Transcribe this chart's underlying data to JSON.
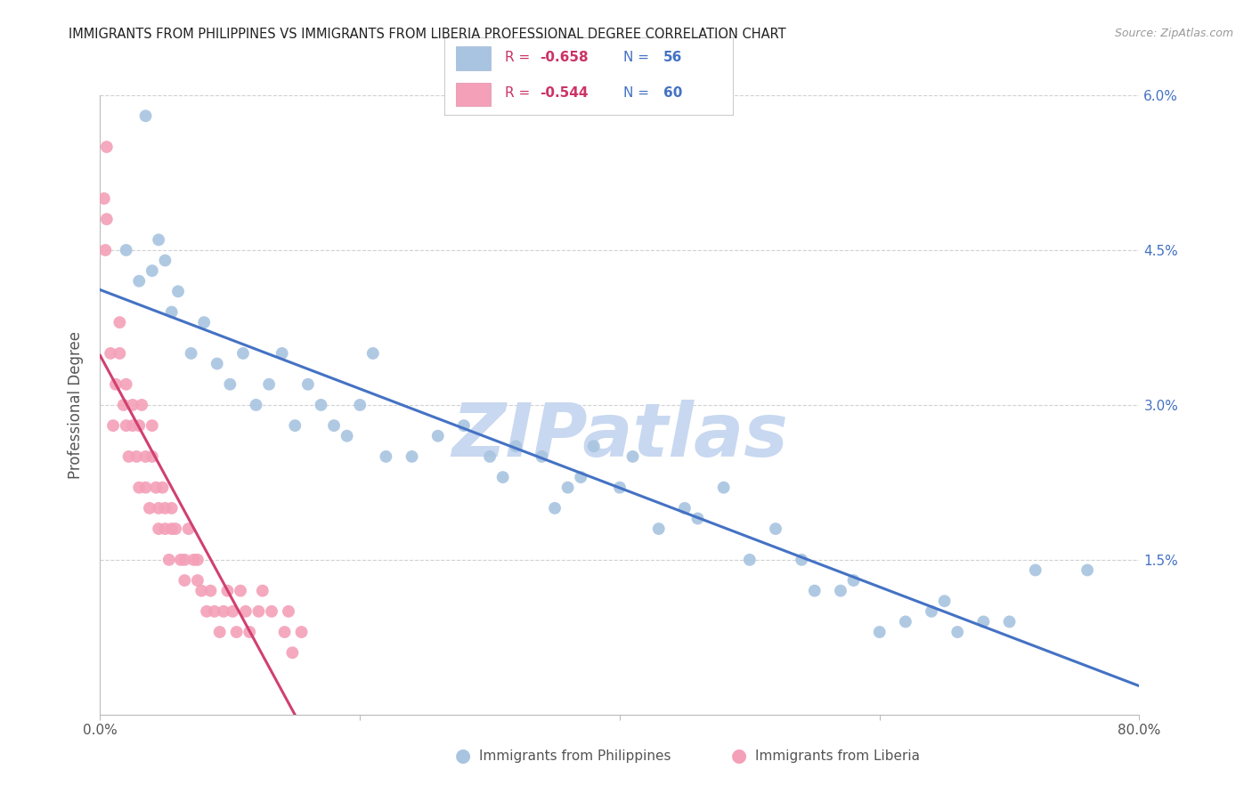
{
  "title": "IMMIGRANTS FROM PHILIPPINES VS IMMIGRANTS FROM LIBERIA PROFESSIONAL DEGREE CORRELATION CHART",
  "source": "Source: ZipAtlas.com",
  "ylabel": "Professional Degree",
  "xlim": [
    0.0,
    80.0
  ],
  "ylim": [
    0.0,
    6.0
  ],
  "right_yticks": [
    0.0,
    1.5,
    3.0,
    4.5,
    6.0
  ],
  "right_yticklabels": [
    "",
    "1.5%",
    "3.0%",
    "4.5%",
    "6.0%"
  ],
  "watermark_text": "ZIPatlas",
  "watermark_color": "#c8d8f0",
  "background_color": "#ffffff",
  "grid_color": "#cccccc",
  "philippines_color": "#a8c4e0",
  "liberia_color": "#f4a0b8",
  "philippines_line_color": "#4472c4",
  "liberia_line_color": "#d04070",
  "philippines_R": -0.658,
  "philippines_N": 56,
  "liberia_R": -0.544,
  "liberia_N": 60,
  "philippines_x": [
    2.0,
    3.0,
    3.5,
    4.0,
    4.5,
    5.0,
    5.5,
    6.0,
    7.0,
    8.0,
    9.0,
    10.0,
    11.0,
    12.0,
    13.0,
    14.0,
    15.0,
    16.0,
    17.0,
    18.0,
    19.0,
    20.0,
    21.0,
    22.0,
    24.0,
    26.0,
    28.0,
    30.0,
    31.0,
    32.0,
    34.0,
    35.0,
    36.0,
    37.0,
    38.0,
    40.0,
    41.0,
    43.0,
    45.0,
    46.0,
    48.0,
    50.0,
    52.0,
    54.0,
    55.0,
    57.0,
    58.0,
    60.0,
    62.0,
    64.0,
    65.0,
    66.0,
    68.0,
    70.0,
    72.0,
    76.0
  ],
  "philippines_y": [
    4.5,
    4.2,
    5.8,
    4.3,
    4.6,
    4.4,
    3.9,
    4.1,
    3.5,
    3.8,
    3.4,
    3.2,
    3.5,
    3.0,
    3.2,
    3.5,
    2.8,
    3.2,
    3.0,
    2.8,
    2.7,
    3.0,
    3.5,
    2.5,
    2.5,
    2.7,
    2.8,
    2.5,
    2.3,
    2.6,
    2.5,
    2.0,
    2.2,
    2.3,
    2.6,
    2.2,
    2.5,
    1.8,
    2.0,
    1.9,
    2.2,
    1.5,
    1.8,
    1.5,
    1.2,
    1.2,
    1.3,
    0.8,
    0.9,
    1.0,
    1.1,
    0.8,
    0.9,
    0.9,
    1.4,
    1.4
  ],
  "liberia_x": [
    0.5,
    0.5,
    0.8,
    1.0,
    1.2,
    1.5,
    1.5,
    1.8,
    2.0,
    2.0,
    2.2,
    2.5,
    2.5,
    2.8,
    3.0,
    3.0,
    3.2,
    3.5,
    3.5,
    3.8,
    4.0,
    4.0,
    4.3,
    4.5,
    4.5,
    4.8,
    5.0,
    5.0,
    5.3,
    5.5,
    5.5,
    5.8,
    6.2,
    6.5,
    6.5,
    6.8,
    7.2,
    7.5,
    7.5,
    7.8,
    8.2,
    8.5,
    8.8,
    9.2,
    9.5,
    9.8,
    10.2,
    10.5,
    10.8,
    11.2,
    11.5,
    12.2,
    12.5,
    13.2,
    14.2,
    14.5,
    14.8,
    15.5,
    0.3,
    0.4
  ],
  "liberia_y": [
    5.5,
    4.8,
    3.5,
    2.8,
    3.2,
    3.5,
    3.8,
    3.0,
    2.8,
    3.2,
    2.5,
    3.0,
    2.8,
    2.5,
    2.2,
    2.8,
    3.0,
    2.5,
    2.2,
    2.0,
    2.5,
    2.8,
    2.2,
    2.0,
    1.8,
    2.2,
    2.0,
    1.8,
    1.5,
    1.8,
    2.0,
    1.8,
    1.5,
    1.3,
    1.5,
    1.8,
    1.5,
    1.3,
    1.5,
    1.2,
    1.0,
    1.2,
    1.0,
    0.8,
    1.0,
    1.2,
    1.0,
    0.8,
    1.2,
    1.0,
    0.8,
    1.0,
    1.2,
    1.0,
    0.8,
    1.0,
    0.6,
    0.8,
    5.0,
    4.5
  ]
}
